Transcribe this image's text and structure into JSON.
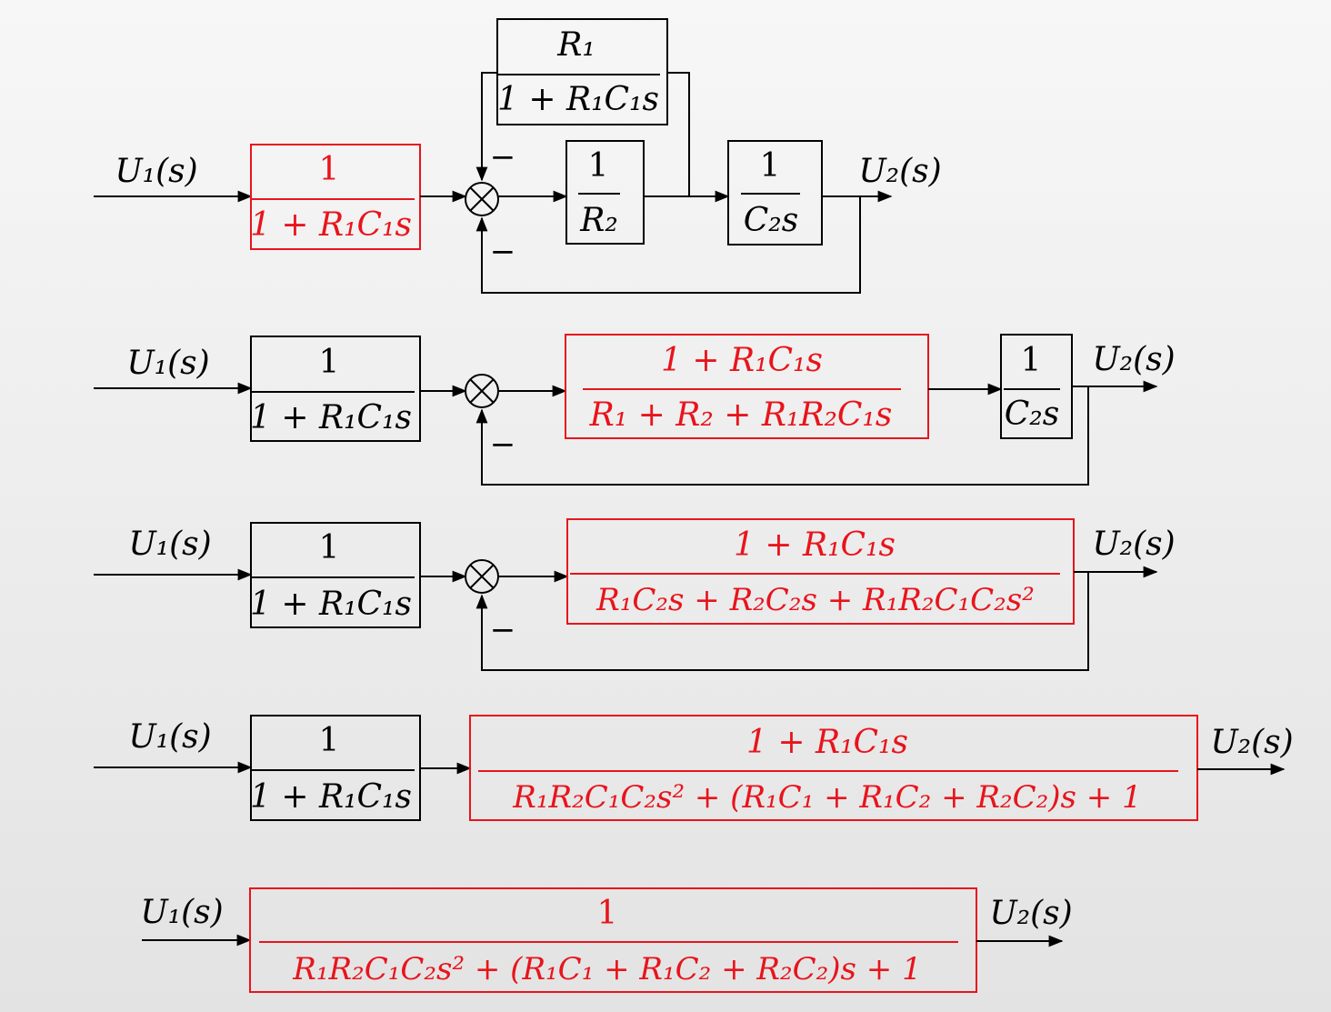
{
  "colors": {
    "ink": "#000000",
    "highlight": "#e8141c"
  },
  "signals": {
    "input": "U₁(s)",
    "output": "U₂(s)"
  },
  "signs": {
    "minus": "−"
  },
  "stage1": {
    "block_prefilter": {
      "num": "1",
      "den": "1 + R₁C₁s"
    },
    "block_feedback": {
      "num": "R₁",
      "den": "1 + R₁C₁s"
    },
    "block_r2": {
      "num": "1",
      "den": "R₂"
    },
    "block_c2": {
      "num": "1",
      "den": "C₂s"
    }
  },
  "stage2": {
    "block_prefilter": {
      "num": "1",
      "den": "1 + R₁C₁s"
    },
    "block_inner": {
      "num": "1 + R₁C₁s",
      "den": "R₁ + R₂ + R₁R₂C₁s"
    },
    "block_c2": {
      "num": "1",
      "den": "C₂s"
    }
  },
  "stage3": {
    "block_prefilter": {
      "num": "1",
      "den": "1 + R₁C₁s"
    },
    "block_forward": {
      "num": "1 + R₁C₁s",
      "den": "R₁C₂s + R₂C₂s + R₁R₂C₁C₂s²"
    }
  },
  "stage4": {
    "block_prefilter": {
      "num": "1",
      "den": "1 + R₁C₁s"
    },
    "block_closed": {
      "num": "1 + R₁C₁s",
      "den": "R₁R₂C₁C₂s² + (R₁C₁ + R₁C₂ + R₂C₂)s + 1"
    }
  },
  "stage5": {
    "block_total": {
      "num": "1",
      "den": "R₁R₂C₁C₂s² + (R₁C₁ + R₁C₂ + R₂C₂)s + 1"
    }
  }
}
